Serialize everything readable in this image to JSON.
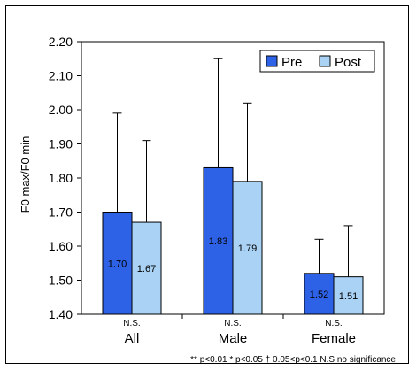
{
  "chart_data": {
    "type": "bar",
    "ylabel": "F0 max/F0 min",
    "ylim": [
      1.4,
      2.2
    ],
    "yticks": [
      "1.40",
      "1.50",
      "1.60",
      "1.70",
      "1.80",
      "1.90",
      "2.00",
      "2.10",
      "2.20"
    ],
    "categories": [
      "All",
      "Male",
      "Female"
    ],
    "significance": [
      "N.S.",
      "N.S.",
      "N.S."
    ],
    "series": [
      {
        "name": "Pre",
        "color": "#2e62e6",
        "values": [
          1.7,
          1.83,
          1.52
        ],
        "labels": [
          "1.70",
          "1.83",
          "1.52"
        ],
        "error_upper": [
          1.99,
          2.15,
          1.62
        ]
      },
      {
        "name": "Post",
        "color": "#a9d2f5",
        "values": [
          1.67,
          1.79,
          1.51
        ],
        "labels": [
          "1.67",
          "1.79",
          "1.51"
        ],
        "error_upper": [
          1.91,
          2.02,
          1.66
        ]
      }
    ],
    "legend_position": "top-right",
    "footnote": "** p<0.01   * p<0.05   † 0.05<p<0.1   N.S no significance"
  }
}
